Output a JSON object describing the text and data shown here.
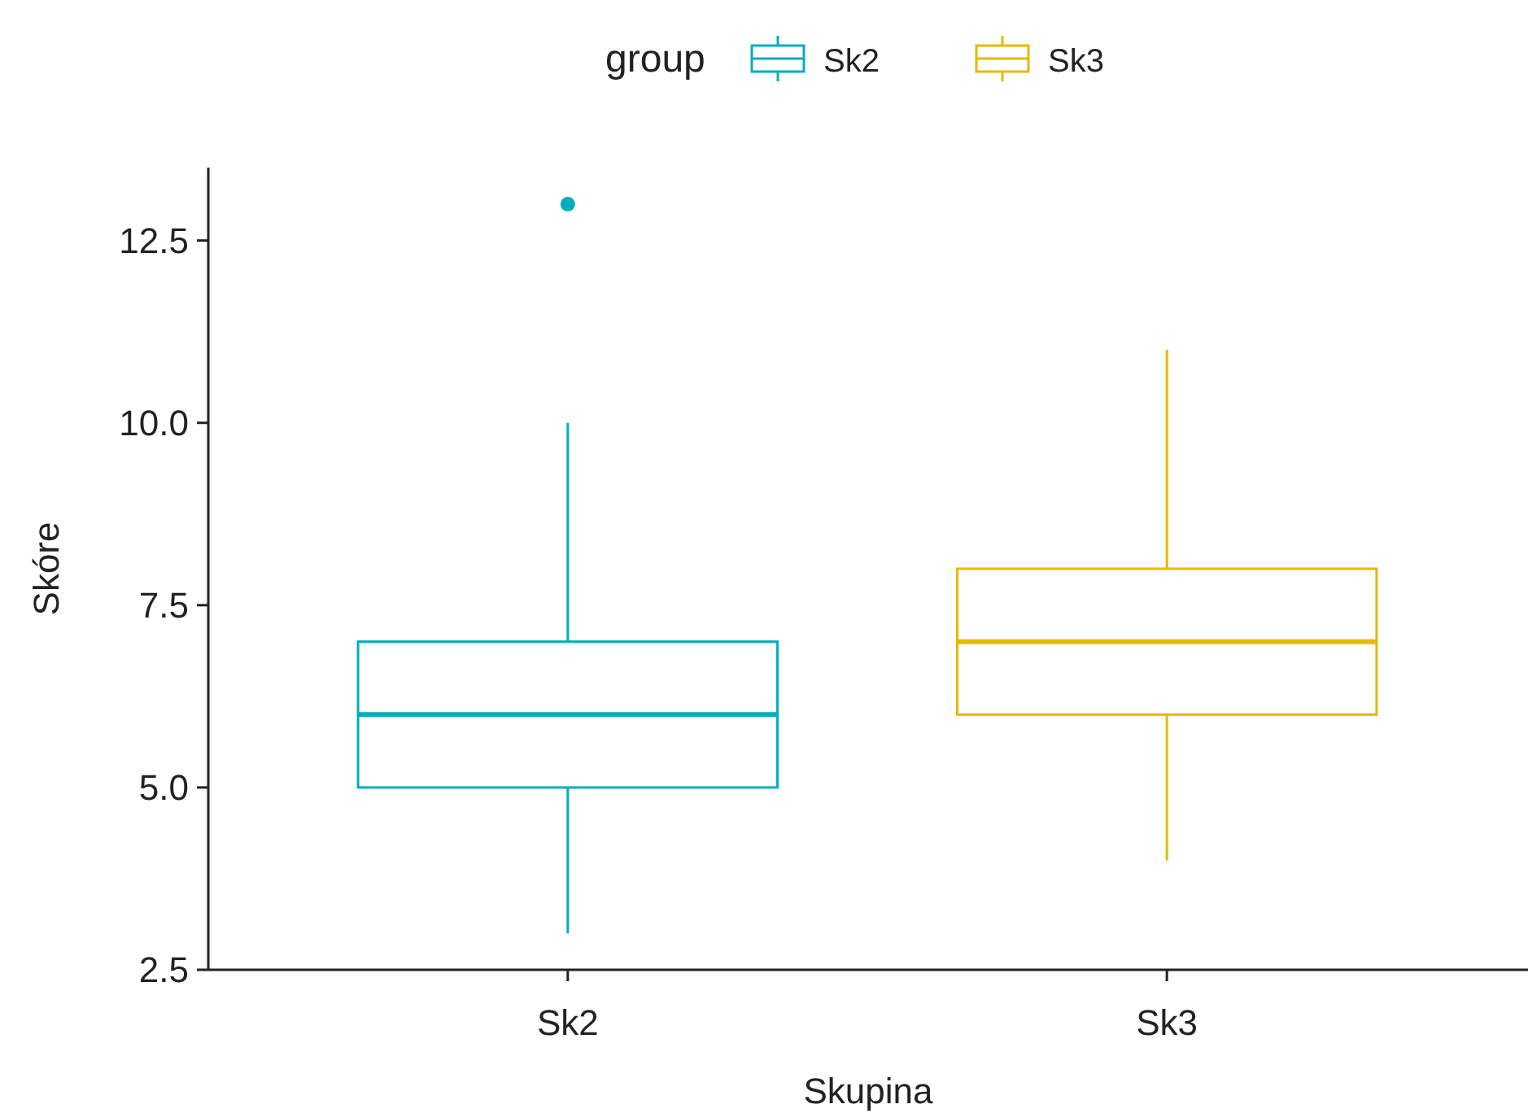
{
  "chart_data": {
    "type": "box",
    "xlabel": "Skupina",
    "ylabel": "Skóre",
    "legend_title": "group",
    "legend": "top",
    "grid": false,
    "categories": [
      "Sk2",
      "Sk3"
    ],
    "ylim": [
      2.5,
      13.5
    ],
    "yticks": [
      {
        "value": 2.5,
        "label": "2.5"
      },
      {
        "value": 5,
        "label": "5.0"
      },
      {
        "value": 7.5,
        "label": "7.5"
      },
      {
        "value": 10,
        "label": "10.0"
      },
      {
        "value": 12.5,
        "label": "12.5"
      }
    ],
    "series": [
      {
        "name": "Sk2",
        "color": "#00afbb",
        "boxes": [
          {
            "low": 3,
            "q1": 5,
            "median": 6,
            "q3": 7,
            "high": 10,
            "outliers": [
              13
            ]
          },
          null
        ]
      },
      {
        "name": "Sk3",
        "color": "#e7b800",
        "boxes": [
          null,
          {
            "low": 4,
            "q1": 6,
            "median": 7,
            "q3": 8,
            "high": 11
          }
        ]
      }
    ]
  }
}
